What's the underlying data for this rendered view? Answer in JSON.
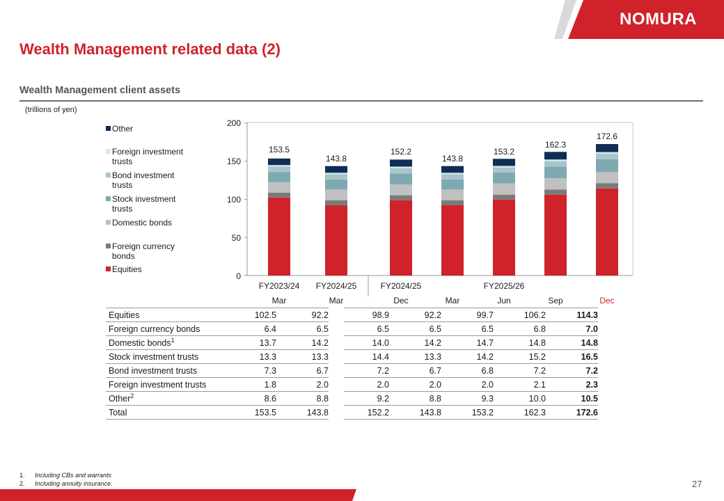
{
  "header": {
    "logo_text": "NOMURA",
    "title": "Wealth Management related data (2)",
    "subtitle": "Wealth Management client assets",
    "unit": "(trillions of yen)"
  },
  "colors": {
    "brand_red": "#d0222a",
    "equities": "#d0222a",
    "foreign_currency_bonds": "#7a7a7a",
    "domestic_bonds": "#c0c0c0",
    "stock_investment_trusts": "#7fa9b0",
    "bond_investment_trusts": "#a7c6cc",
    "foreign_investment_trusts": "#d8e9ec",
    "other": "#0f2d55"
  },
  "legend": [
    {
      "label": "Other",
      "color_key": "other"
    },
    {
      "label": "Foreign investment trusts",
      "color_key": "foreign_investment_trusts"
    },
    {
      "label": "Bond investment trusts",
      "color_key": "bond_investment_trusts"
    },
    {
      "label": "Stock investment trusts",
      "color_key": "stock_investment_trusts"
    },
    {
      "label": "Domestic bonds",
      "color_key": "domestic_bonds"
    },
    {
      "label": "Foreign currency bonds",
      "color_key": "foreign_currency_bonds"
    },
    {
      "label": "Equities",
      "color_key": "equities"
    }
  ],
  "chart_data": {
    "type": "bar",
    "stacked": true,
    "title": "Wealth Management client assets",
    "ylabel": "(trillions of yen)",
    "ylim": [
      0,
      200
    ],
    "yticks": [
      0,
      50,
      100,
      150,
      200
    ],
    "periods": [
      "FY2023/24",
      "FY2024/25",
      "FY2024/25",
      "",
      "FY2025/26",
      "",
      ""
    ],
    "categories": [
      "Mar",
      "Mar",
      "Dec",
      "Mar",
      "Jun",
      "Sep",
      "Dec"
    ],
    "series": [
      {
        "name": "Equities",
        "values": [
          102.5,
          92.2,
          98.9,
          92.2,
          99.7,
          106.2,
          114.3
        ]
      },
      {
        "name": "Foreign currency bonds",
        "values": [
          6.4,
          6.5,
          6.5,
          6.5,
          6.5,
          6.8,
          7.0
        ]
      },
      {
        "name": "Domestic bonds",
        "values": [
          13.7,
          14.2,
          14.0,
          14.2,
          14.7,
          14.8,
          14.8
        ]
      },
      {
        "name": "Stock investment trusts",
        "values": [
          13.3,
          13.3,
          14.4,
          13.3,
          14.2,
          15.2,
          16.5
        ]
      },
      {
        "name": "Bond investment trusts",
        "values": [
          7.3,
          6.7,
          7.2,
          6.7,
          6.8,
          7.2,
          7.2
        ]
      },
      {
        "name": "Foreign investment trusts",
        "values": [
          1.8,
          2.0,
          2.0,
          2.0,
          2.0,
          2.1,
          2.3
        ]
      },
      {
        "name": "Other",
        "values": [
          8.6,
          8.8,
          9.2,
          8.8,
          9.3,
          10.0,
          10.5
        ]
      }
    ],
    "totals": [
      "153.5",
      "143.8",
      "152.2",
      "143.8",
      "153.2",
      "162.3",
      "172.6"
    ]
  },
  "table": {
    "rows": [
      {
        "label": "Equities",
        "sup": "",
        "values": [
          "102.5",
          "92.2",
          "98.9",
          "92.2",
          "99.7",
          "106.2",
          "114.3"
        ]
      },
      {
        "label": "Foreign currency bonds",
        "sup": "",
        "values": [
          "6.4",
          "6.5",
          "6.5",
          "6.5",
          "6.5",
          "6.8",
          "7.0"
        ]
      },
      {
        "label": "Domestic bonds",
        "sup": "1",
        "values": [
          "13.7",
          "14.2",
          "14.0",
          "14.2",
          "14.7",
          "14.8",
          "14.8"
        ]
      },
      {
        "label": "Stock investment trusts",
        "sup": "",
        "values": [
          "13.3",
          "13.3",
          "14.4",
          "13.3",
          "14.2",
          "15.2",
          "16.5"
        ]
      },
      {
        "label": "Bond investment trusts",
        "sup": "",
        "values": [
          "7.3",
          "6.7",
          "7.2",
          "6.7",
          "6.8",
          "7.2",
          "7.2"
        ]
      },
      {
        "label": "Foreign investment trusts",
        "sup": "",
        "values": [
          "1.8",
          "2.0",
          "2.0",
          "2.0",
          "2.0",
          "2.1",
          "2.3"
        ]
      },
      {
        "label": "Other",
        "sup": "2",
        "values": [
          "8.6",
          "8.8",
          "9.2",
          "8.8",
          "9.3",
          "10.0",
          "10.5"
        ]
      },
      {
        "label": "Total",
        "sup": "",
        "values": [
          "153.5",
          "143.8",
          "152.2",
          "143.8",
          "153.2",
          "162.3",
          "172.6"
        ]
      }
    ]
  },
  "footnotes": [
    {
      "num": "1.",
      "text": "Including CBs and warrants"
    },
    {
      "num": "2.",
      "text": "Including annuity insurance."
    }
  ],
  "page_number": "27"
}
